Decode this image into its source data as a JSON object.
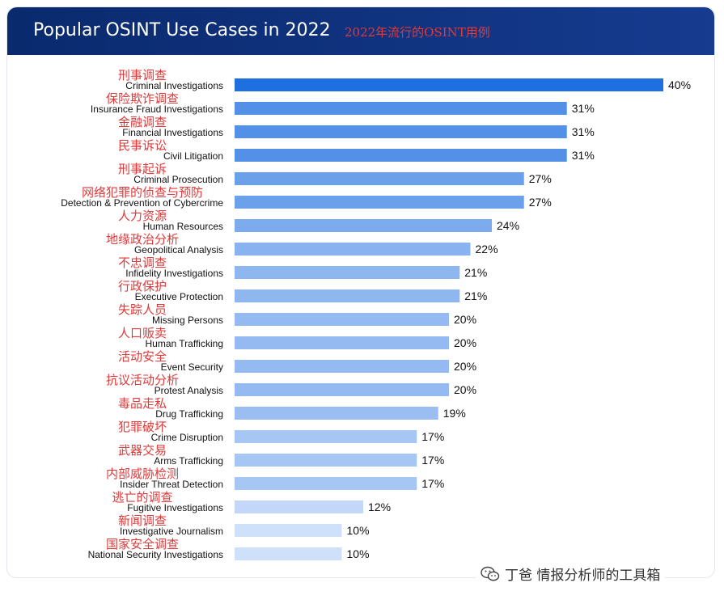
{
  "header": {
    "title": "Popular OSINT Use Cases in 2022",
    "subtitle": "2022年流行的OSINT用例"
  },
  "watermark": {
    "icon": "wechat-icon",
    "text": "丁爸 情报分析师的工具箱"
  },
  "colors": {
    "header_bg": "#0d2f78",
    "annotation": "#e03a3a",
    "bar_dark": "#1e6fe0",
    "bar_light": "#cfe0fa"
  },
  "chart_data": {
    "type": "bar",
    "orientation": "horizontal",
    "title": "Popular OSINT Use Cases in 2022",
    "categories": [
      "Criminal Investigations",
      "Insurance Fraud Investigations",
      "Financial Investigations",
      "Civil Litigation",
      "Criminal Prosecution",
      "Detection & Prevention of Cybercrime",
      "Human Resources",
      "Geopolitical Analysis",
      "Infidelity Investigations",
      "Executive Protection",
      "Missing Persons",
      "Human Trafficking",
      "Event Security",
      "Protest Analysis",
      "Drug Trafficking",
      "Crime Disruption",
      "Arms Trafficking",
      "Insider Threat Detection",
      "Fugitive Investigations",
      "Investigative Journalism",
      "National Security Investigations"
    ],
    "annotations_zh": [
      "刑事调查",
      "保险欺诈调查",
      "金融调查",
      "民事诉讼",
      "刑事起诉",
      "网络犯罪的侦查与预防",
      "人力资源",
      "地缘政治分析",
      "不忠调查",
      "行政保护",
      "失踪人员",
      "人口贩卖",
      "活动安全",
      "抗议活动分析",
      "毒品走私",
      "犯罪破坏",
      "武器交易",
      "内部威胁检测",
      "逃亡的调查",
      "新闻调查",
      "国家安全调查"
    ],
    "values": [
      40,
      31,
      31,
      31,
      27,
      27,
      24,
      22,
      21,
      21,
      20,
      20,
      20,
      20,
      19,
      17,
      17,
      17,
      12,
      10,
      10
    ],
    "value_labels": [
      "40%",
      "31%",
      "31%",
      "31%",
      "27%",
      "27%",
      "24%",
      "22%",
      "21%",
      "21%",
      "20%",
      "20%",
      "20%",
      "20%",
      "19%",
      "17%",
      "17%",
      "17%",
      "12%",
      "10%",
      "10%"
    ],
    "xlim": [
      0,
      40
    ],
    "grid": false,
    "legend": "none"
  }
}
